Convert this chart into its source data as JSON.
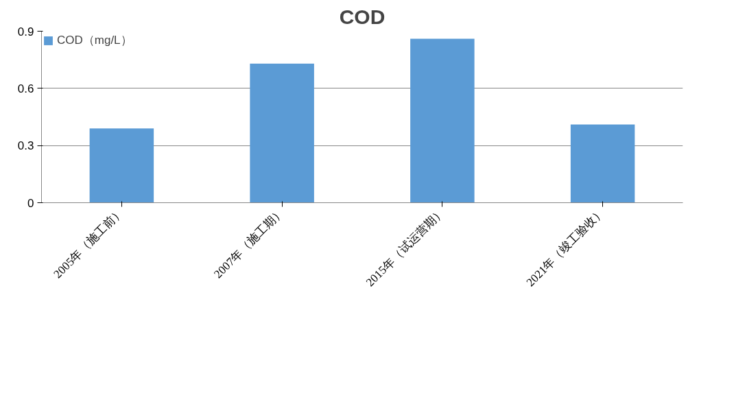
{
  "chart_data": {
    "type": "bar",
    "title": "COD",
    "categories": [
      "2005年（施工前）",
      "2007年（施工期）",
      "2015年（试运营期）",
      "2021年（竣工验收）"
    ],
    "series": [
      {
        "name": "COD（mg/L）",
        "color": "#5b9bd5",
        "values": [
          0.39,
          0.73,
          0.86,
          0.41
        ]
      }
    ],
    "ylim": [
      0,
      0.9
    ],
    "yticks": [
      0,
      0.3,
      0.6,
      0.9
    ],
    "grid": "y",
    "legend": "top left"
  }
}
